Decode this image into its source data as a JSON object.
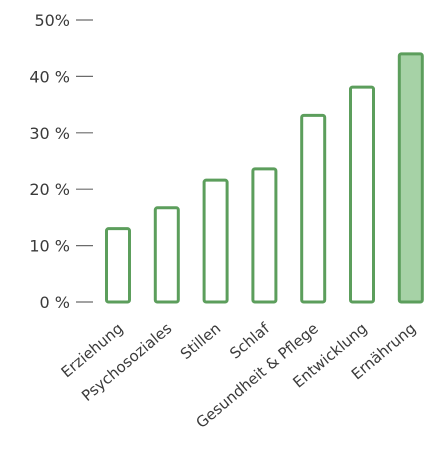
{
  "chart_data": {
    "type": "bar",
    "categories": [
      "Erziehung",
      "Psychosoziales",
      "Stillen",
      "Schlaf",
      "Gesundheit & Pflege",
      "Entwicklung",
      "Ernährung"
    ],
    "values": [
      13,
      16.7,
      21.6,
      23.6,
      33.1,
      38.1,
      44
    ],
    "highlighted_index": 6,
    "ylim": [
      0,
      50
    ],
    "yticks": [
      0,
      10,
      20,
      30,
      40,
      50
    ],
    "ytick_labels": [
      "0 %",
      "10 %",
      "20 %",
      "30 %",
      "40 %",
      "50%"
    ],
    "grid": false,
    "colors": {
      "bar_stroke": "#5c9e5c",
      "bar_fill": "#ffffff",
      "highlight_fill": "#a6d2a6",
      "axis_tick": "#6b6b6b",
      "text": "#3a3a3a"
    }
  }
}
